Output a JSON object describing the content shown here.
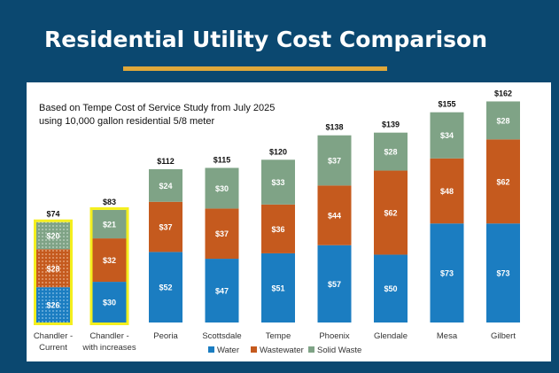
{
  "slide": {
    "title": "Residential Utility Cost Comparison"
  },
  "chart_data": {
    "type": "bar",
    "stacked": true,
    "subtitle_lines": [
      "Based on Tempe Cost of Service Study from July 2025",
      "using 10,000 gallon residential 5/8 meter"
    ],
    "categories": [
      [
        "Chandler -",
        "Current"
      ],
      [
        "Chandler -",
        "with increases"
      ],
      [
        "Peoria"
      ],
      [
        "Scottsdale"
      ],
      [
        "Tempe"
      ],
      [
        "Phoenix"
      ],
      [
        "Glendale"
      ],
      [
        "Mesa"
      ],
      [
        "Gilbert"
      ]
    ],
    "series": [
      {
        "name": "Water",
        "color": "#1b7dc1",
        "values": [
          26,
          30,
          52,
          47,
          51,
          57,
          50,
          73,
          73
        ]
      },
      {
        "name": "Wastewater",
        "color": "#c55a1e",
        "values": [
          28,
          32,
          37,
          37,
          36,
          44,
          62,
          48,
          62
        ]
      },
      {
        "name": "Solid Waste",
        "color": "#7fa386",
        "values": [
          20,
          21,
          24,
          30,
          33,
          37,
          28,
          34,
          28
        ]
      }
    ],
    "totals": [
      "$74",
      "$83",
      "$112",
      "$115",
      "$120",
      "$138",
      "$139",
      "$155",
      "$162"
    ],
    "value_prefix": "$",
    "highlighted_categories": [
      0,
      1
    ],
    "highlight_color": "#f4ef1e",
    "patterned_categories": [
      0
    ],
    "ylim": [
      0,
      162
    ],
    "legend_position": "bottom"
  }
}
